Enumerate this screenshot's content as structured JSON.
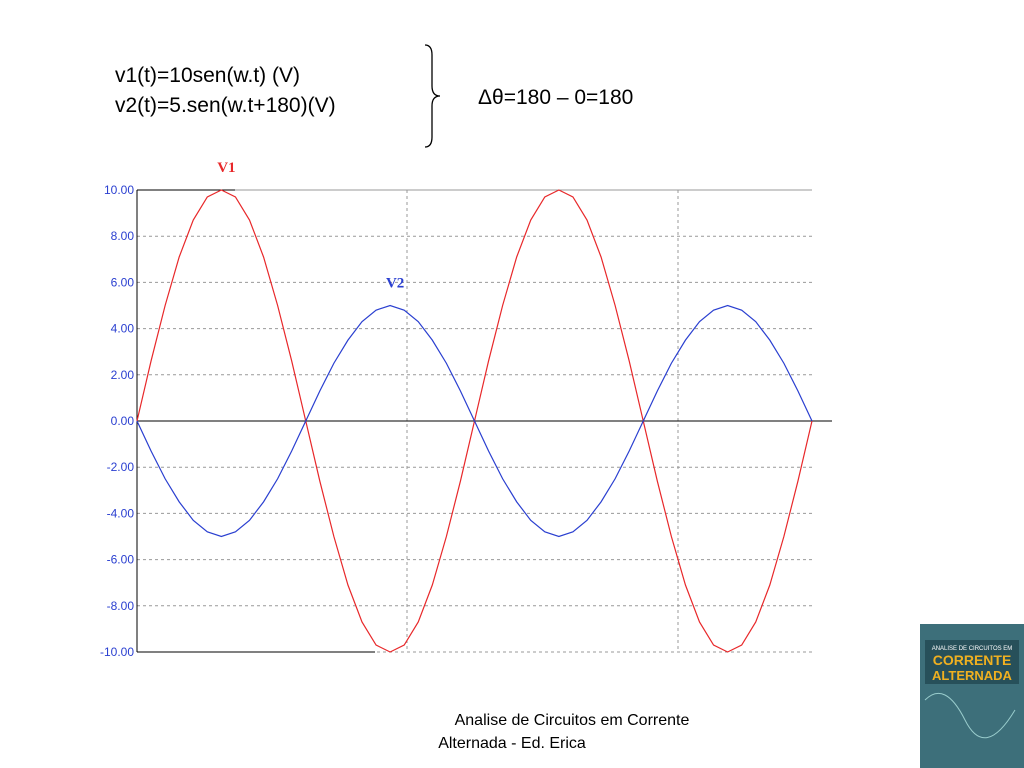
{
  "equations": [
    "v1(t)=10sen(w.t) (V)",
    "v2(t)=5.sen(w.t+180)(V)"
  ],
  "result": "Δθ=180 – 0=180",
  "chart_data": {
    "type": "line",
    "series": [
      {
        "name": "V1",
        "color": "#e8282a",
        "values": [
          0,
          2.6,
          5,
          7.1,
          8.7,
          9.7,
          10,
          9.7,
          8.7,
          7.1,
          5,
          2.6,
          0,
          -2.6,
          -5,
          -7.1,
          -8.7,
          -9.7,
          -10,
          -9.7,
          -8.7,
          -7.1,
          -5,
          -2.6,
          0,
          2.6,
          5,
          7.1,
          8.7,
          9.7,
          10,
          9.7,
          8.7,
          7.1,
          5,
          2.6,
          0,
          -2.6,
          -5,
          -7.1,
          -8.7,
          -9.7,
          -10,
          -9.7,
          -8.7,
          -7.1,
          -5,
          -2.6,
          0
        ]
      },
      {
        "name": "V2",
        "color": "#2a3fd0",
        "values": [
          0,
          -1.3,
          -2.5,
          -3.5,
          -4.3,
          -4.8,
          -5,
          -4.8,
          -4.3,
          -3.5,
          -2.5,
          -1.3,
          0,
          1.3,
          2.5,
          3.5,
          4.3,
          4.8,
          5,
          4.8,
          4.3,
          3.5,
          2.5,
          1.3,
          0,
          -1.3,
          -2.5,
          -3.5,
          -4.3,
          -4.8,
          -5,
          -4.8,
          -4.3,
          -3.5,
          -2.5,
          -1.3,
          0,
          1.3,
          2.5,
          3.5,
          4.3,
          4.8,
          5,
          4.8,
          4.3,
          3.5,
          2.5,
          1.3,
          0
        ]
      }
    ],
    "ylim": [
      -10,
      10
    ],
    "yticks": [
      {
        "value": 10,
        "label": "10.00"
      },
      {
        "value": 8,
        "label": "8.00"
      },
      {
        "value": 6,
        "label": "6.00"
      },
      {
        "value": 4,
        "label": "4.00"
      },
      {
        "value": 2,
        "label": "2.00"
      },
      {
        "value": 0,
        "label": "0.00"
      },
      {
        "value": -2,
        "label": "-2.00"
      },
      {
        "value": -4,
        "label": "-4.00"
      },
      {
        "value": -6,
        "label": "-6.00"
      },
      {
        "value": -8,
        "label": "-8.00"
      },
      {
        "value": -10,
        "label": "-10.00"
      }
    ],
    "grid": true
  },
  "caption": [
    "Analise de Circuitos em Corrente",
    "Alternada - Ed. Erica"
  ],
  "book": {
    "top": "ANALISE DE CIRCUITOS EM",
    "title": [
      "CORRENTE",
      "ALTERNADA"
    ]
  }
}
